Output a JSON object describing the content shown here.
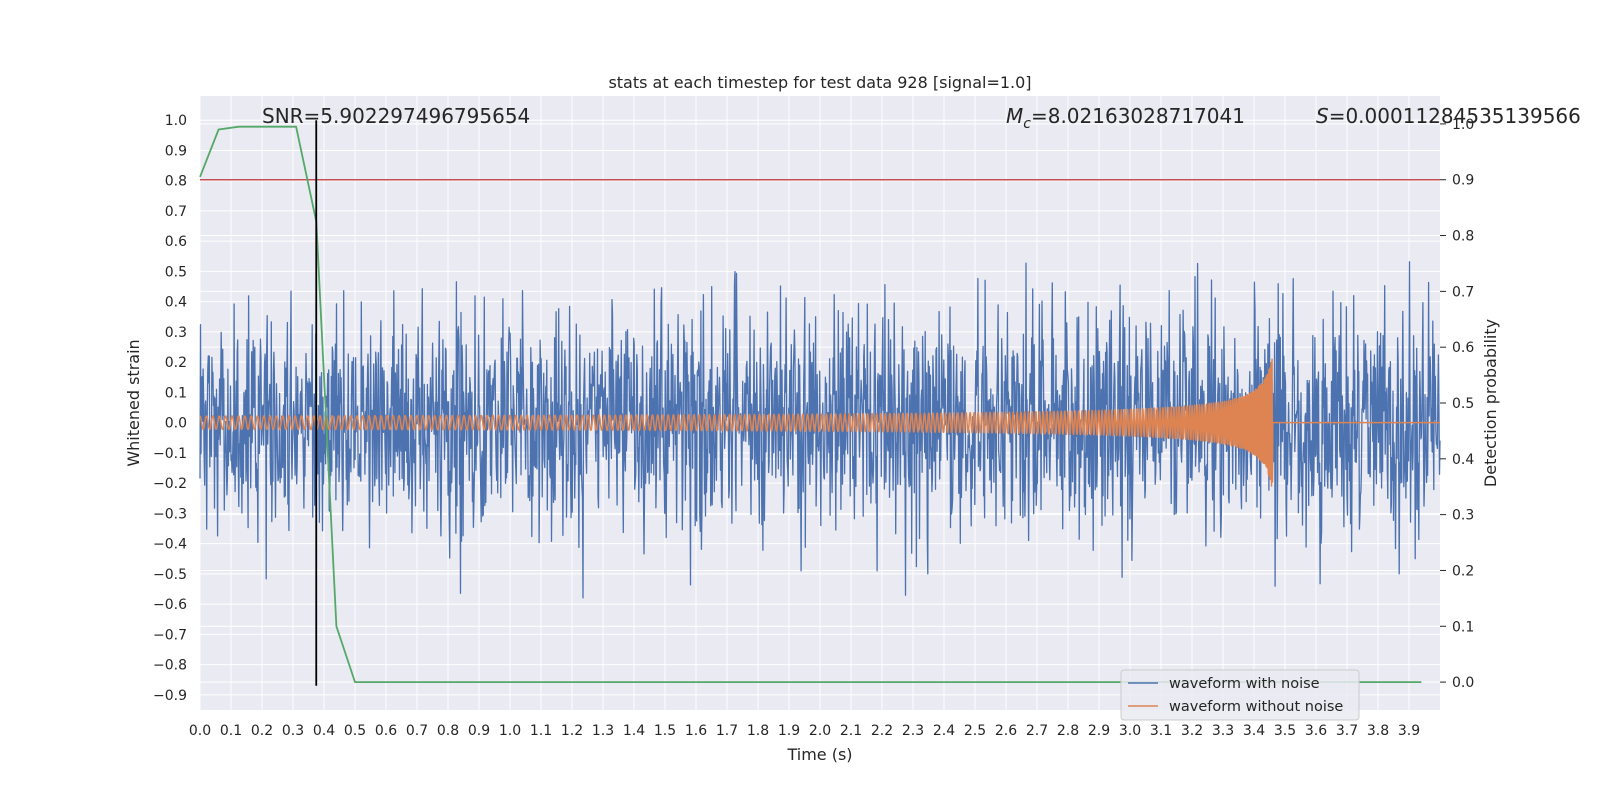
{
  "chart_data": {
    "type": "line",
    "title": "stats at each timestep for test data 928 [signal=1.0]",
    "xlabel": "Time (s)",
    "ylabel": "Whitened strain",
    "y2label": "Detection probability",
    "xlim": [
      0.0,
      4.0
    ],
    "ylim": [
      -0.95,
      1.08
    ],
    "y2lim": [
      -0.05,
      1.05
    ],
    "xticks": [
      0.0,
      0.1,
      0.2,
      0.3,
      0.4,
      0.5,
      0.6,
      0.7,
      0.8,
      0.9,
      1.0,
      1.1,
      1.2,
      1.3,
      1.4,
      1.5,
      1.6,
      1.7,
      1.8,
      1.9,
      2.0,
      2.1,
      2.2,
      2.3,
      2.4,
      2.5,
      2.6,
      2.7,
      2.8,
      2.9,
      3.0,
      3.1,
      3.2,
      3.3,
      3.4,
      3.5,
      3.6,
      3.7,
      3.8,
      3.9
    ],
    "xtick_labels": [
      "0.0",
      "0.1",
      "0.2",
      "0.3",
      "0.4",
      "0.5",
      "0.6",
      "0.7",
      "0.8",
      "0.9",
      "1.0",
      "1.1",
      "1.2",
      "1.3",
      "1.4",
      "1.5",
      "1.6",
      "1.7",
      "1.8",
      "1.9",
      "2.0",
      "2.1",
      "2.2",
      "2.3",
      "2.4",
      "2.5",
      "2.6",
      "2.7",
      "2.8",
      "2.9",
      "3.0",
      "3.1",
      "3.2",
      "3.3",
      "3.4",
      "3.5",
      "3.6",
      "3.7",
      "3.8",
      "3.9"
    ],
    "yticks": [
      1.0,
      0.9,
      0.8,
      0.7,
      0.6,
      0.5,
      0.4,
      0.3,
      0.2,
      0.1,
      0.0,
      -0.1,
      -0.2,
      -0.3,
      -0.4,
      -0.5,
      -0.6,
      -0.7,
      -0.8,
      -0.9
    ],
    "ytick_labels": [
      "1.0",
      "0.9",
      "0.8",
      "0.7",
      "0.6",
      "0.5",
      "0.4",
      "0.3",
      "0.2",
      "0.1",
      "0.0",
      "−0.1",
      "−0.2",
      "−0.3",
      "−0.4",
      "−0.5",
      "−0.6",
      "−0.7",
      "−0.8",
      "−0.9"
    ],
    "y2ticks": [
      1.0,
      0.9,
      0.8,
      0.7,
      0.6,
      0.5,
      0.4,
      0.3,
      0.2,
      0.1,
      0.0
    ],
    "y2tick_labels": [
      "1.0",
      "0.9",
      "0.8",
      "0.7",
      "0.6",
      "0.5",
      "0.4",
      "0.3",
      "0.2",
      "0.1",
      "0.0"
    ],
    "grid": true,
    "legend_position": "bottom-right",
    "annotations": {
      "snr": "SNR=5.902297496795654",
      "mc_symbol": "M",
      "mc_sub": "c",
      "mc_value": "=8.02163028717041",
      "s_symbol": "S",
      "s_value": "=0.00011284535139566"
    },
    "series": [
      {
        "name": "waveform with noise",
        "color": "#4c72b0",
        "kind": "noise",
        "x_range": [
          0.0,
          4.0
        ],
        "amplitude_range": [
          -0.87,
          1.0
        ]
      },
      {
        "name": "waveform without noise",
        "color": "#dd8452",
        "kind": "chirp",
        "x_range": [
          0.0,
          4.0
        ],
        "merger_time": 3.46,
        "peak_amplitude": 0.23
      },
      {
        "name": "",
        "color": "#55a868",
        "axis": "y2",
        "x": [
          0.0,
          0.06,
          0.125,
          0.19,
          0.25,
          0.31,
          0.375,
          0.44,
          0.5,
          3.94
        ],
        "values": [
          0.905,
          0.99,
          0.995,
          0.995,
          0.995,
          0.995,
          0.825,
          0.1,
          0.0,
          0.0
        ]
      },
      {
        "name": "",
        "color": "#c44e52",
        "axis": "y2",
        "kind": "threshold",
        "value": 0.9
      },
      {
        "name": "",
        "color": "#000000",
        "kind": "vline",
        "x": 0.375,
        "y_range": [
          -0.87,
          1.0
        ]
      }
    ]
  }
}
